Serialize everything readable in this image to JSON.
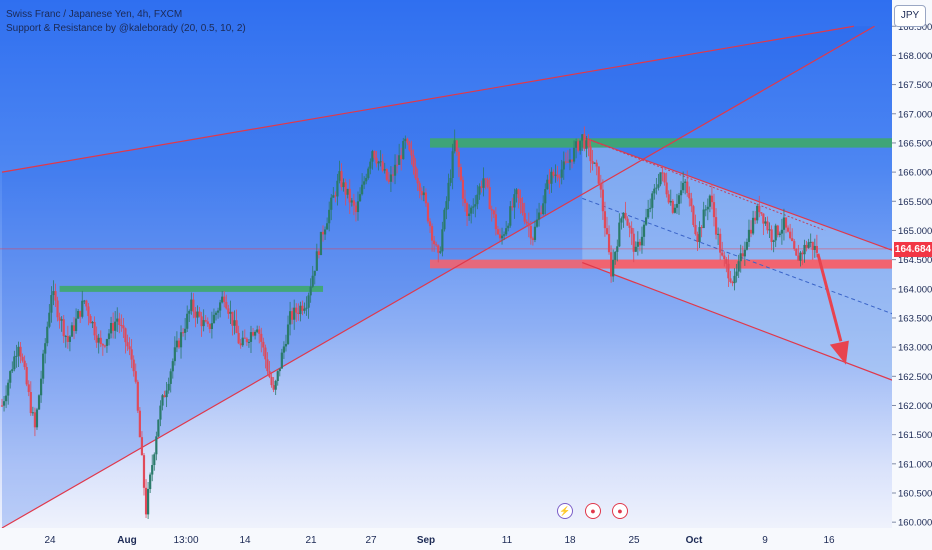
{
  "legend": {
    "symbol": "Swiss Franc / Japanese Yen, 4h, FXCM",
    "indicator": "Support & Resistance by @kaleborady (20, 0.5, 10, 2)"
  },
  "currency": "JPY",
  "last_price": "164.684",
  "event_icons": [
    "lightning-icon",
    "record-icon",
    "record-icon"
  ],
  "colors": {
    "support_zone": "#f2636f",
    "resistance_zone": "#3ea86a",
    "channel_line": "#e0384b",
    "arrow": "#e8434f",
    "candle_up": "#2a7a6a",
    "candle_down": "#e04a5a",
    "price_label": "#f23645"
  },
  "chart_data": {
    "type": "candlestick",
    "title": "Swiss Franc / Japanese Yen, 4h, FXCM",
    "y_axis_ticks": [
      "168.500",
      "168.000",
      "167.500",
      "167.000",
      "166.500",
      "166.000",
      "165.500",
      "165.000",
      "164.500",
      "164.000",
      "163.500",
      "163.000",
      "162.500",
      "162.000",
      "161.500",
      "161.000",
      "160.500",
      "160.000"
    ],
    "x_axis_ticks": [
      "24",
      "Aug",
      "13:00",
      "14",
      "21",
      "27",
      "Sep",
      "11",
      "18",
      "25",
      "Oct",
      "9",
      "16"
    ],
    "ylim": [
      159.9,
      168.95
    ],
    "zones": [
      {
        "kind": "resistance",
        "low": 166.42,
        "high": 166.58
      },
      {
        "kind": "support",
        "low": 164.35,
        "high": 164.5
      },
      {
        "kind": "resistance",
        "low": 163.95,
        "high": 164.05
      }
    ],
    "anchors": [
      {
        "t": 0,
        "p": 162.0
      },
      {
        "t": 4,
        "p": 163.1
      },
      {
        "t": 8,
        "p": 161.6
      },
      {
        "t": 12,
        "p": 163.95
      },
      {
        "t": 16,
        "p": 163.1
      },
      {
        "t": 20,
        "p": 163.8
      },
      {
        "t": 24,
        "p": 163.0
      },
      {
        "t": 28,
        "p": 163.5
      },
      {
        "t": 32,
        "p": 162.7
      },
      {
        "t": 35,
        "p": 160.2
      },
      {
        "t": 38,
        "p": 161.8
      },
      {
        "t": 42,
        "p": 162.9
      },
      {
        "t": 46,
        "p": 163.7
      },
      {
        "t": 50,
        "p": 163.3
      },
      {
        "t": 54,
        "p": 163.9
      },
      {
        "t": 58,
        "p": 163.0
      },
      {
        "t": 62,
        "p": 163.4
      },
      {
        "t": 66,
        "p": 162.2
      },
      {
        "t": 70,
        "p": 163.5
      },
      {
        "t": 74,
        "p": 163.8
      },
      {
        "t": 78,
        "p": 165.0
      },
      {
        "t": 82,
        "p": 165.9
      },
      {
        "t": 86,
        "p": 165.3
      },
      {
        "t": 90,
        "p": 166.4
      },
      {
        "t": 94,
        "p": 165.8
      },
      {
        "t": 98,
        "p": 166.5
      },
      {
        "t": 102,
        "p": 165.7
      },
      {
        "t": 106,
        "p": 164.5
      },
      {
        "t": 110,
        "p": 166.5
      },
      {
        "t": 113,
        "p": 165.2
      },
      {
        "t": 117,
        "p": 165.9
      },
      {
        "t": 121,
        "p": 164.8
      },
      {
        "t": 125,
        "p": 165.6
      },
      {
        "t": 129,
        "p": 164.9
      },
      {
        "t": 133,
        "p": 165.9
      },
      {
        "t": 137,
        "p": 166.1
      },
      {
        "t": 141,
        "p": 166.6
      },
      {
        "t": 145,
        "p": 165.9
      },
      {
        "t": 148,
        "p": 164.3
      },
      {
        "t": 151,
        "p": 165.4
      },
      {
        "t": 154,
        "p": 164.6
      },
      {
        "t": 157,
        "p": 165.3
      },
      {
        "t": 160,
        "p": 166.0
      },
      {
        "t": 163,
        "p": 165.4
      },
      {
        "t": 166,
        "p": 165.8
      },
      {
        "t": 169,
        "p": 164.9
      },
      {
        "t": 172,
        "p": 165.6
      },
      {
        "t": 175,
        "p": 164.5
      },
      {
        "t": 178,
        "p": 164.1
      },
      {
        "t": 181,
        "p": 164.9
      },
      {
        "t": 184,
        "p": 165.4
      },
      {
        "t": 187,
        "p": 164.9
      },
      {
        "t": 190,
        "p": 165.1
      },
      {
        "t": 193,
        "p": 164.5
      },
      {
        "t": 196,
        "p": 164.8
      },
      {
        "t": 198,
        "p": 164.65
      }
    ],
    "channel_upper": [
      {
        "t": 0,
        "p": 166.0
      },
      {
        "t": 207,
        "p": 168.5
      }
    ],
    "channel_lower": [
      {
        "t": 0,
        "p": 159.9
      },
      {
        "t": 212,
        "p": 168.5
      }
    ],
    "descending_upper": [
      {
        "t": 141,
        "p": 166.6
      },
      {
        "t": 240,
        "p": 164.05
      }
    ],
    "descending_lower": [
      {
        "t": 141,
        "p": 164.45
      },
      {
        "t": 240,
        "p": 161.8
      }
    ],
    "descending_mid": [
      {
        "t": 141,
        "p": 165.55
      },
      {
        "t": 240,
        "p": 162.95
      }
    ]
  }
}
